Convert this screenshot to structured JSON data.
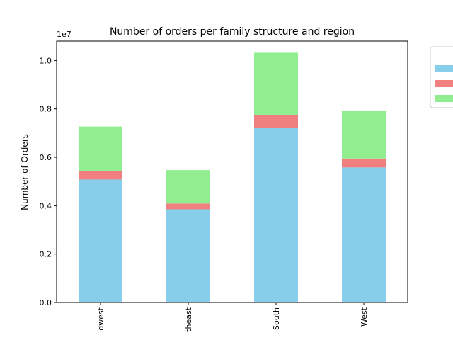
{
  "chart_data": {
    "type": "bar",
    "stacked": true,
    "title": "Number of orders per family structure and region",
    "xlabel": "",
    "ylabel": "Number of Orders",
    "y_offset_label": "1e7",
    "y_scale": 10000000,
    "ylim": [
      0,
      10800000
    ],
    "yticks": [
      0,
      2000000,
      4000000,
      6000000,
      8000000,
      10000000
    ],
    "ytick_labels": [
      "0.0",
      "0.2",
      "0.4",
      "0.6",
      "0.8",
      "1.0"
    ],
    "categories": [
      "Midwest",
      "Northeast",
      "South",
      "West"
    ],
    "category_labels_visible": [
      "dwest",
      "theast",
      "South",
      "West"
    ],
    "grid": false,
    "legend_position": "right-outside",
    "series": [
      {
        "values": [
          5080000,
          3850000,
          7210000,
          5580000
        ],
        "color": "#87CEEB"
      },
      {
        "values": [
          340000,
          240000,
          530000,
          370000
        ],
        "color": "#F08080"
      },
      {
        "values": [
          1850000,
          1380000,
          2580000,
          1970000
        ],
        "color": "#90EE90"
      }
    ]
  }
}
